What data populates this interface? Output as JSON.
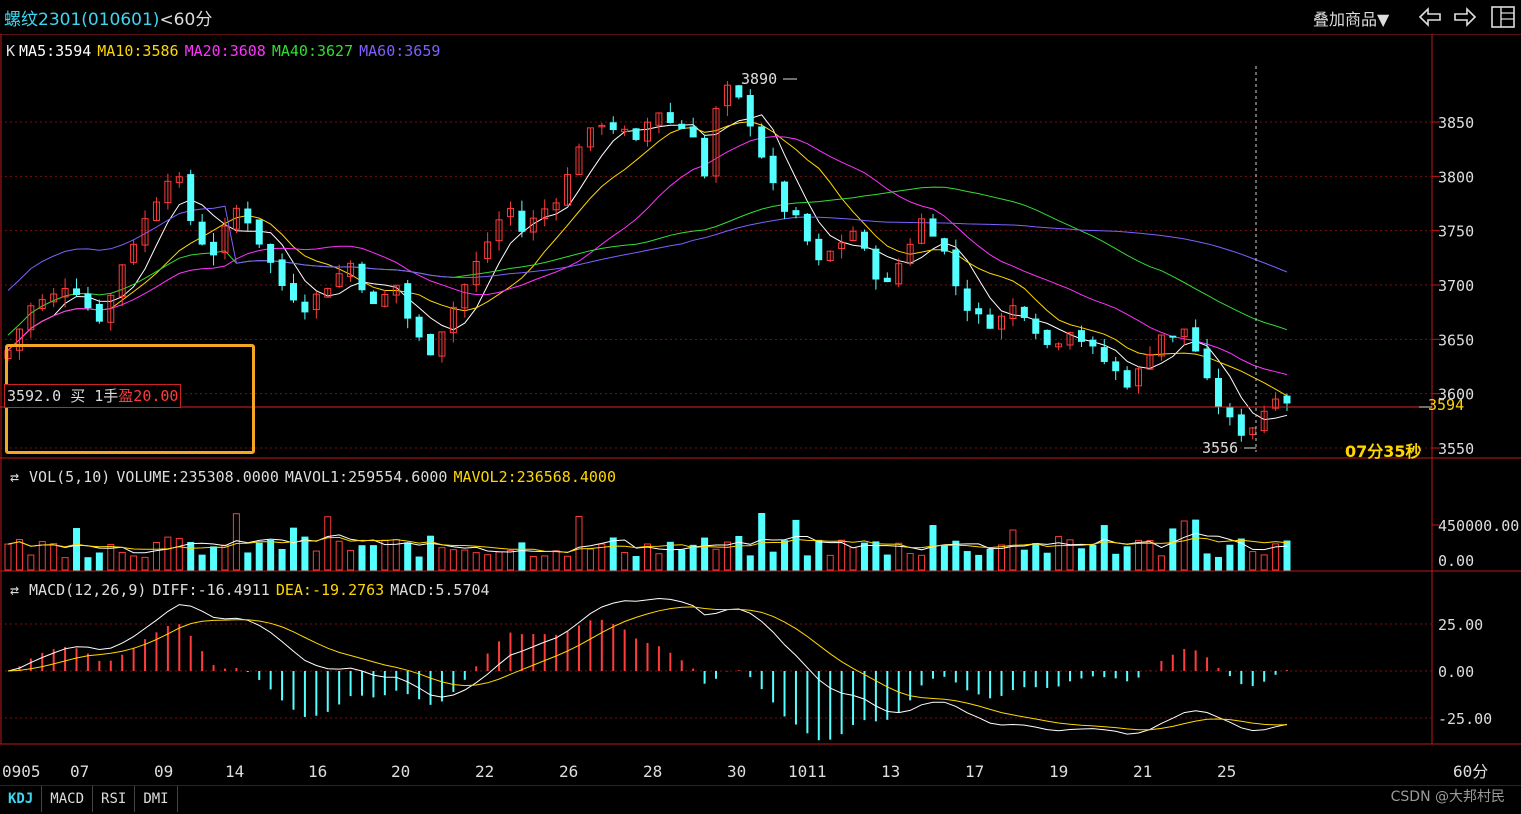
{
  "header": {
    "symbol": "螺纹2301",
    "code": "(010601)",
    "period": "<60分",
    "overlay_label": "叠加商品▼"
  },
  "kline_legend": {
    "prefix": "K",
    "items": [
      {
        "label": "MA5:3594",
        "color": "#ffffff"
      },
      {
        "label": "MA10:3586",
        "color": "#ffd700"
      },
      {
        "label": "MA20:3608",
        "color": "#ff33ff"
      },
      {
        "label": "MA40:3627",
        "color": "#33dd33"
      },
      {
        "label": "MA60:3659",
        "color": "#7f5fff"
      }
    ]
  },
  "price_axis": [
    "3850",
    "3800",
    "3750",
    "3700",
    "3650",
    "3600",
    "3550"
  ],
  "annotations": {
    "high": "3890",
    "low": "3556",
    "last_price": "3594",
    "countdown": "07分35秒"
  },
  "order": {
    "price": "3592.0",
    "side": "买",
    "qty": "1手",
    "pnl": "盈20.00"
  },
  "vol_legend": {
    "items": [
      {
        "label": "VOL(5,10)",
        "color": "#dddddd"
      },
      {
        "label": "VOLUME:235308.0000",
        "color": "#dddddd"
      },
      {
        "label": "MAVOL1:259554.6000",
        "color": "#dddddd"
      },
      {
        "label": "MAVOL2:236568.4000",
        "color": "#ffd700"
      }
    ],
    "axis": [
      "450000.00",
      "0.00"
    ]
  },
  "macd_legend": {
    "items": [
      {
        "label": "MACD(12,26,9)",
        "color": "#dddddd"
      },
      {
        "label": "DIFF:-16.4911",
        "color": "#dddddd"
      },
      {
        "label": "DEA:-19.2763",
        "color": "#ffd700"
      },
      {
        "label": "MACD:5.5704",
        "color": "#dddddd"
      }
    ],
    "axis": [
      "25.00",
      "0.00",
      "-25.00"
    ]
  },
  "date_axis": [
    "0905",
    "07",
    "09",
    "14",
    "16",
    "20",
    "22",
    "26",
    "28",
    "30",
    "1011",
    "13",
    "17",
    "19",
    "21",
    "25"
  ],
  "period_label": "60分",
  "tabs": [
    "KDJ",
    "MACD",
    "RSI",
    "DMI"
  ],
  "watermark": "CSDN @大邦村民",
  "colors": {
    "up": "#ff3b3b",
    "down": "#54ffff",
    "grid": "#7a1010",
    "accent": "#3dd6f0"
  },
  "chart_data": {
    "type": "candlestick",
    "period": "60分",
    "price_range": [
      3540,
      3905
    ],
    "close_path": [
      3640,
      3660,
      3680,
      3685,
      3690,
      3700,
      3695,
      3680,
      3670,
      3690,
      3720,
      3740,
      3760,
      3780,
      3800,
      3795,
      3760,
      3740,
      3730,
      3750,
      3770,
      3760,
      3740,
      3720,
      3700,
      3690,
      3680,
      3690,
      3700,
      3710,
      3720,
      3700,
      3680,
      3690,
      3700,
      3670,
      3650,
      3640,
      3660,
      3680,
      3700,
      3720,
      3740,
      3760,
      3770,
      3750,
      3760,
      3770,
      3780,
      3800,
      3830,
      3840,
      3850,
      3845,
      3840,
      3830,
      3850,
      3860,
      3850,
      3845,
      3840,
      3800,
      3860,
      3880,
      3870,
      3850,
      3820,
      3790,
      3770,
      3760,
      3740,
      3720,
      3730,
      3740,
      3750,
      3730,
      3710,
      3700,
      3720,
      3740,
      3760,
      3750,
      3730,
      3700,
      3680,
      3670,
      3665,
      3670,
      3680,
      3675,
      3660,
      3645,
      3650,
      3660,
      3650,
      3640,
      3630,
      3620,
      3610,
      3620,
      3640,
      3655,
      3650,
      3660,
      3640,
      3610,
      3590,
      3575,
      3565,
      3570,
      3585,
      3600,
      3594
    ],
    "volume_max": 450000
  }
}
